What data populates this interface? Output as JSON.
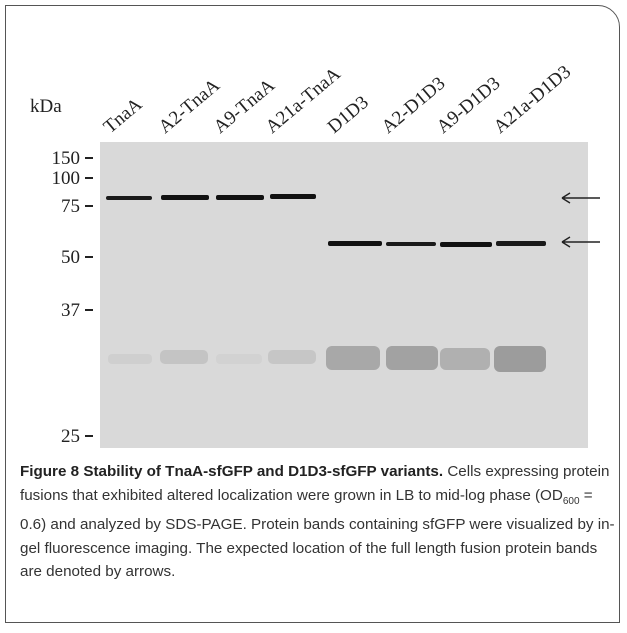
{
  "figure": {
    "unit_label": "kDa",
    "lanes": [
      "TnaA",
      "A2-TnaA",
      "A9-TnaA",
      "A21a-TnaA",
      "D1D3",
      "A2-D1D3",
      "A9-D1D3",
      "A21a-D1D3"
    ],
    "markers": [
      "150",
      "100",
      "75",
      "50",
      "37",
      "25"
    ],
    "caption": {
      "label": "Figure 8",
      "title": "Stability of TnaA-sfGFP and D1D3-sfGFP variants.",
      "text_before": "Cells expressing protein fusions that exhibited altered localization were grown in LB to mid-log phase (OD",
      "subscript": "600",
      "text_after": " = 0.6) and analyzed by SDS-PAGE. Protein bands containing sfGFP were visualized by in-gel fluorescence imaging. The expected location of the full length fusion protein bands are denoted by arrows."
    }
  }
}
